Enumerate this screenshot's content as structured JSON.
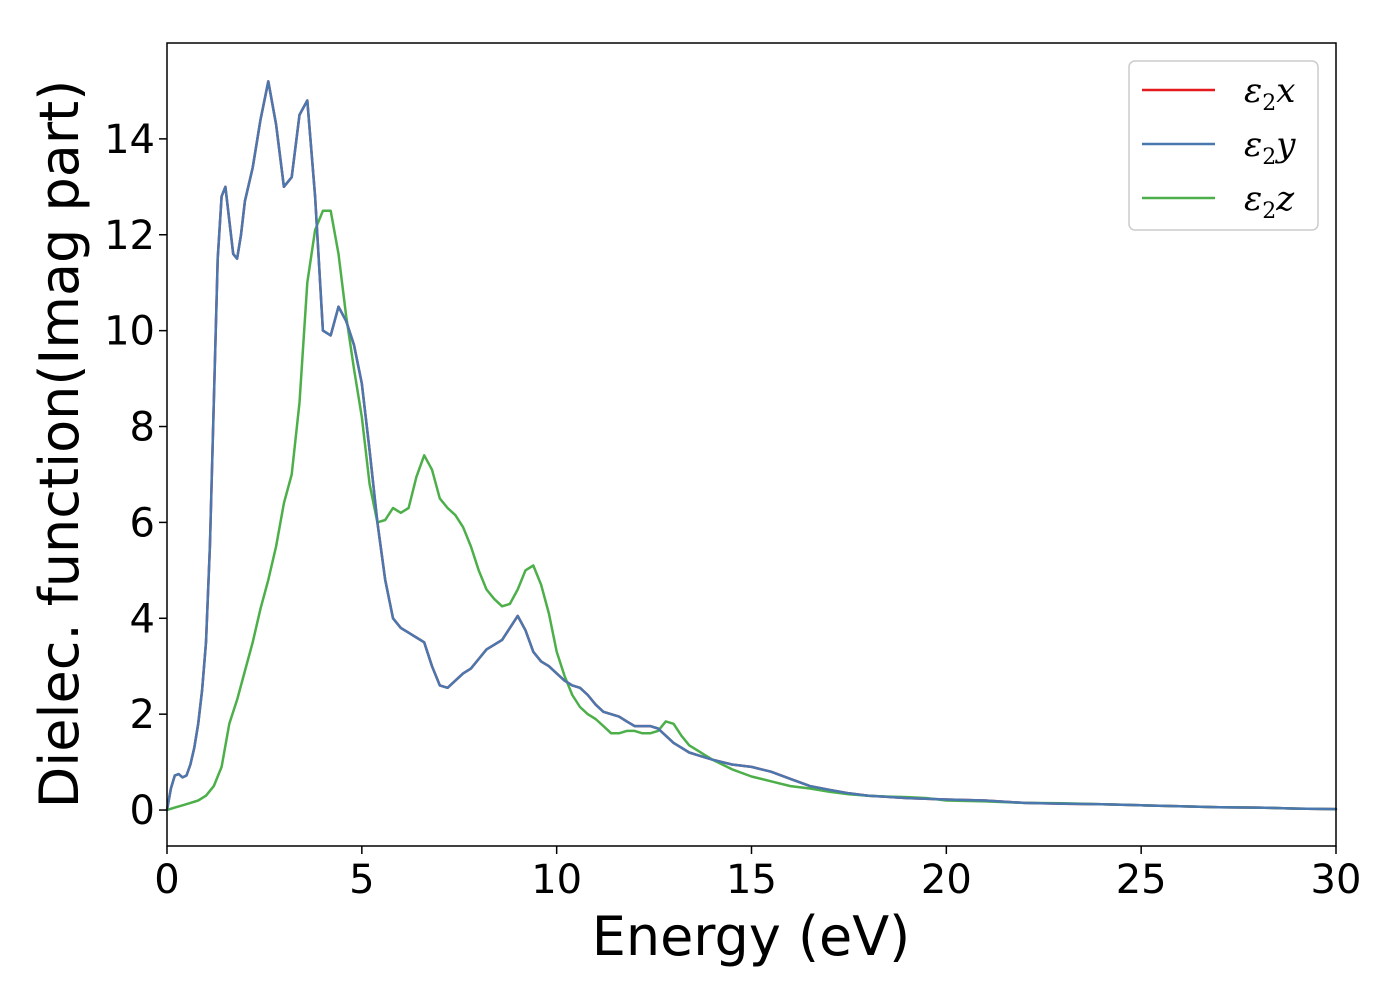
{
  "chart_data": {
    "type": "line",
    "xlabel": "Energy (eV)",
    "ylabel": "Dielec. function(Imag part)",
    "xlim": [
      0,
      30
    ],
    "ylim": [
      -0.75,
      16
    ],
    "xticks": [
      0,
      5,
      10,
      15,
      20,
      25,
      30
    ],
    "yticks": [
      0,
      2,
      4,
      6,
      8,
      10,
      12,
      14
    ],
    "grid": false,
    "legend_position": "top-right",
    "series": [
      {
        "name": "ε₂x",
        "sym": "ε",
        "sub": "2",
        "var": "x",
        "color": "#e41a1c",
        "x": [
          0.0,
          0.1,
          0.2,
          0.3,
          0.4,
          0.5,
          0.6,
          0.7,
          0.8,
          0.9,
          1.0,
          1.1,
          1.2,
          1.3,
          1.4,
          1.5,
          1.6,
          1.7,
          1.8,
          1.9,
          2.0,
          2.2,
          2.4,
          2.6,
          2.8,
          3.0,
          3.2,
          3.4,
          3.6,
          3.8,
          4.0,
          4.2,
          4.4,
          4.6,
          4.8,
          5.0,
          5.2,
          5.4,
          5.6,
          5.8,
          6.0,
          6.2,
          6.4,
          6.6,
          6.8,
          7.0,
          7.2,
          7.4,
          7.6,
          7.8,
          8.0,
          8.2,
          8.4,
          8.6,
          8.8,
          9.0,
          9.2,
          9.4,
          9.6,
          9.8,
          10.0,
          10.2,
          10.4,
          10.6,
          10.8,
          11.0,
          11.2,
          11.4,
          11.6,
          11.8,
          12.0,
          12.2,
          12.4,
          12.6,
          12.8,
          13.0,
          13.2,
          13.4,
          13.6,
          13.8,
          14.0,
          14.5,
          15.0,
          15.5,
          16.0,
          16.5,
          17.0,
          17.5,
          18.0,
          19.0,
          20.0,
          21.0,
          22.0,
          23.0,
          24.0,
          25.0,
          26.0,
          27.0,
          28.0,
          29.0,
          30.0
        ],
        "y": [
          0.0,
          0.45,
          0.72,
          0.75,
          0.68,
          0.72,
          0.95,
          1.3,
          1.8,
          2.5,
          3.5,
          5.5,
          8.5,
          11.5,
          12.8,
          13.0,
          12.3,
          11.6,
          11.5,
          12.0,
          12.7,
          13.4,
          14.4,
          15.2,
          14.3,
          13.0,
          13.2,
          14.5,
          14.8,
          12.8,
          10.0,
          9.9,
          10.5,
          10.2,
          9.7,
          8.9,
          7.5,
          6.0,
          4.8,
          4.0,
          3.8,
          3.7,
          3.6,
          3.5,
          3.0,
          2.6,
          2.55,
          2.7,
          2.85,
          2.95,
          3.15,
          3.35,
          3.45,
          3.55,
          3.8,
          4.05,
          3.75,
          3.3,
          3.1,
          3.0,
          2.85,
          2.7,
          2.6,
          2.55,
          2.4,
          2.2,
          2.05,
          2.0,
          1.95,
          1.85,
          1.75,
          1.75,
          1.75,
          1.7,
          1.55,
          1.4,
          1.3,
          1.2,
          1.15,
          1.1,
          1.05,
          0.95,
          0.9,
          0.8,
          0.65,
          0.5,
          0.42,
          0.35,
          0.3,
          0.25,
          0.22,
          0.2,
          0.15,
          0.13,
          0.12,
          0.1,
          0.08,
          0.06,
          0.05,
          0.03,
          0.02
        ]
      },
      {
        "name": "ε₂y",
        "sym": "ε",
        "sub": "2",
        "var": "y",
        "color": "#4a78ae",
        "x": [
          0.0,
          0.1,
          0.2,
          0.3,
          0.4,
          0.5,
          0.6,
          0.7,
          0.8,
          0.9,
          1.0,
          1.1,
          1.2,
          1.3,
          1.4,
          1.5,
          1.6,
          1.7,
          1.8,
          1.9,
          2.0,
          2.2,
          2.4,
          2.6,
          2.8,
          3.0,
          3.2,
          3.4,
          3.6,
          3.8,
          4.0,
          4.2,
          4.4,
          4.6,
          4.8,
          5.0,
          5.2,
          5.4,
          5.6,
          5.8,
          6.0,
          6.2,
          6.4,
          6.6,
          6.8,
          7.0,
          7.2,
          7.4,
          7.6,
          7.8,
          8.0,
          8.2,
          8.4,
          8.6,
          8.8,
          9.0,
          9.2,
          9.4,
          9.6,
          9.8,
          10.0,
          10.2,
          10.4,
          10.6,
          10.8,
          11.0,
          11.2,
          11.4,
          11.6,
          11.8,
          12.0,
          12.2,
          12.4,
          12.6,
          12.8,
          13.0,
          13.2,
          13.4,
          13.6,
          13.8,
          14.0,
          14.5,
          15.0,
          15.5,
          16.0,
          16.5,
          17.0,
          17.5,
          18.0,
          19.0,
          20.0,
          21.0,
          22.0,
          23.0,
          24.0,
          25.0,
          26.0,
          27.0,
          28.0,
          29.0,
          30.0
        ],
        "y": [
          0.0,
          0.45,
          0.72,
          0.75,
          0.68,
          0.72,
          0.95,
          1.3,
          1.8,
          2.5,
          3.5,
          5.5,
          8.5,
          11.5,
          12.8,
          13.0,
          12.3,
          11.6,
          11.5,
          12.0,
          12.7,
          13.4,
          14.4,
          15.2,
          14.3,
          13.0,
          13.2,
          14.5,
          14.8,
          12.8,
          10.0,
          9.9,
          10.5,
          10.2,
          9.7,
          8.9,
          7.5,
          6.0,
          4.8,
          4.0,
          3.8,
          3.7,
          3.6,
          3.5,
          3.0,
          2.6,
          2.55,
          2.7,
          2.85,
          2.95,
          3.15,
          3.35,
          3.45,
          3.55,
          3.8,
          4.05,
          3.75,
          3.3,
          3.1,
          3.0,
          2.85,
          2.7,
          2.6,
          2.55,
          2.4,
          2.2,
          2.05,
          2.0,
          1.95,
          1.85,
          1.75,
          1.75,
          1.75,
          1.7,
          1.55,
          1.4,
          1.3,
          1.2,
          1.15,
          1.1,
          1.05,
          0.95,
          0.9,
          0.8,
          0.65,
          0.5,
          0.42,
          0.35,
          0.3,
          0.25,
          0.22,
          0.2,
          0.15,
          0.13,
          0.12,
          0.1,
          0.08,
          0.06,
          0.05,
          0.03,
          0.02
        ]
      },
      {
        "name": "ε₂z",
        "sym": "ε",
        "sub": "2",
        "var": "z",
        "color": "#4daf4a",
        "x": [
          0.0,
          0.2,
          0.4,
          0.6,
          0.8,
          1.0,
          1.2,
          1.4,
          1.6,
          1.8,
          2.0,
          2.2,
          2.4,
          2.6,
          2.8,
          3.0,
          3.2,
          3.4,
          3.6,
          3.8,
          4.0,
          4.2,
          4.4,
          4.6,
          4.8,
          5.0,
          5.2,
          5.4,
          5.6,
          5.8,
          6.0,
          6.2,
          6.4,
          6.6,
          6.8,
          7.0,
          7.2,
          7.4,
          7.6,
          7.8,
          8.0,
          8.2,
          8.4,
          8.6,
          8.8,
          9.0,
          9.2,
          9.4,
          9.6,
          9.8,
          10.0,
          10.2,
          10.4,
          10.6,
          10.8,
          11.0,
          11.2,
          11.4,
          11.6,
          11.8,
          12.0,
          12.2,
          12.4,
          12.6,
          12.8,
          13.0,
          13.2,
          13.4,
          13.6,
          13.8,
          14.0,
          14.5,
          15.0,
          15.5,
          16.0,
          16.5,
          17.0,
          17.5,
          18.0,
          18.5,
          19.0,
          19.5,
          20.0,
          21.0,
          22.0,
          23.0,
          24.0,
          25.0,
          26.0,
          27.0,
          28.0,
          29.0,
          30.0
        ],
        "y": [
          0.0,
          0.05,
          0.1,
          0.15,
          0.2,
          0.3,
          0.5,
          0.9,
          1.8,
          2.3,
          2.9,
          3.5,
          4.2,
          4.8,
          5.5,
          6.4,
          7.0,
          8.5,
          11.0,
          12.1,
          12.5,
          12.5,
          11.6,
          10.3,
          9.2,
          8.2,
          6.8,
          6.0,
          6.05,
          6.3,
          6.2,
          6.3,
          6.95,
          7.4,
          7.1,
          6.5,
          6.3,
          6.15,
          5.9,
          5.5,
          5.0,
          4.6,
          4.4,
          4.25,
          4.3,
          4.6,
          5.0,
          5.1,
          4.7,
          4.1,
          3.3,
          2.8,
          2.4,
          2.15,
          2.0,
          1.9,
          1.75,
          1.6,
          1.6,
          1.65,
          1.65,
          1.6,
          1.6,
          1.65,
          1.85,
          1.8,
          1.55,
          1.35,
          1.25,
          1.15,
          1.05,
          0.85,
          0.7,
          0.6,
          0.5,
          0.45,
          0.38,
          0.33,
          0.3,
          0.28,
          0.27,
          0.25,
          0.2,
          0.18,
          0.15,
          0.14,
          0.12,
          0.1,
          0.08,
          0.06,
          0.05,
          0.03,
          0.02
        ]
      }
    ]
  }
}
